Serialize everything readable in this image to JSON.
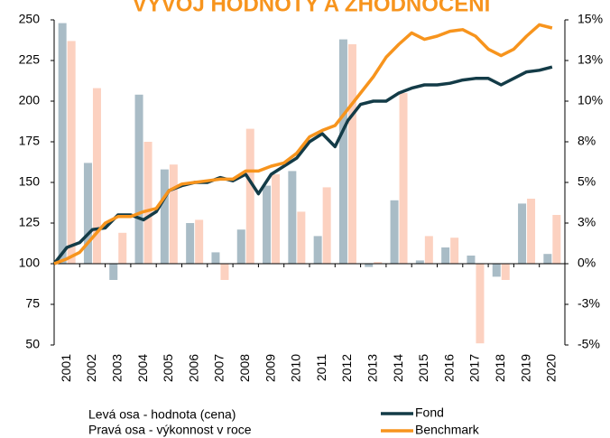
{
  "chart_data": {
    "type": "bar-line",
    "title": "VÝVOJ HODNOTY A ZHODNOCENÍ",
    "annotations": [
      "Levá osa - hodnota (cena)",
      "Pravá osa - výkonnost v roce"
    ],
    "categories": [
      "2001",
      "2002",
      "2003",
      "2004",
      "2005",
      "2006",
      "2007",
      "2008",
      "2009",
      "2010",
      "2011",
      "2012",
      "2013",
      "2014",
      "2015",
      "2016",
      "2017",
      "2018",
      "2019",
      "2020"
    ],
    "bar_series": [
      {
        "color": "#a9bcc6",
        "axis": "y2",
        "values": [
          14.8,
          6.2,
          -1.0,
          10.4,
          5.8,
          2.5,
          0.7,
          2.1,
          4.8,
          5.7,
          1.7,
          13.8,
          -0.2,
          3.9,
          0.2,
          1.0,
          0.5,
          -0.8,
          3.7,
          0.6
        ]
      },
      {
        "color": "#fcd1c0",
        "axis": "y2",
        "values": [
          13.7,
          10.8,
          1.9,
          7.5,
          6.1,
          2.7,
          -1.0,
          8.3,
          5.5,
          3.2,
          4.7,
          13.5,
          0.1,
          10.5,
          1.7,
          1.6,
          -4.9,
          -1.0,
          4.0,
          3.0
        ]
      }
    ],
    "x": [
      2001.0,
      2001.5,
      2002.0,
      2002.5,
      2003.0,
      2003.5,
      2004.0,
      2004.5,
      2005.0,
      2005.5,
      2006.0,
      2006.5,
      2007.0,
      2007.5,
      2008.0,
      2008.5,
      2009.0,
      2009.5,
      2010.0,
      2010.5,
      2011.0,
      2011.5,
      2012.0,
      2012.5,
      2013.0,
      2013.5,
      2014.0,
      2014.5,
      2015.0,
      2015.5,
      2016.0,
      2016.5,
      2017.0,
      2017.5,
      2018.0,
      2018.5,
      2019.0,
      2019.5,
      2020.0,
      2020.5
    ],
    "xlim": [
      2001,
      2021
    ],
    "series": [
      {
        "name": "Fond",
        "color": "#133b47",
        "values": [
          100,
          110,
          113,
          121,
          122,
          130,
          130,
          127,
          132,
          145,
          148,
          150,
          150,
          153,
          151,
          155,
          143,
          155,
          160,
          165,
          175,
          180,
          172,
          188,
          198,
          200,
          200,
          205,
          208,
          210,
          210,
          211,
          213,
          214,
          214,
          210,
          214,
          218,
          219,
          221
        ]
      },
      {
        "name": "Benchmark",
        "color": "#f7941d",
        "values": [
          100,
          103,
          107,
          116,
          125,
          129,
          129,
          132,
          134,
          145,
          149,
          150,
          151,
          152,
          152,
          157,
          157,
          160,
          162,
          168,
          178,
          182,
          185,
          195,
          205,
          215,
          227,
          235,
          242,
          238,
          240,
          243,
          244,
          240,
          232,
          228,
          232,
          240,
          247,
          245
        ]
      }
    ],
    "ylim": [
      50,
      250
    ],
    "yticks": [
      50,
      75,
      100,
      125,
      150,
      175,
      200,
      225,
      250
    ],
    "y2lim": [
      -5,
      15
    ],
    "y2ticks": [
      {
        "value": -5,
        "label": "-5%"
      },
      {
        "value": -2.5,
        "label": "-3%"
      },
      {
        "value": 0,
        "label": "0%"
      },
      {
        "value": 2.5,
        "label": "3%"
      },
      {
        "value": 5,
        "label": "5%"
      },
      {
        "value": 7.5,
        "label": "8%"
      },
      {
        "value": 10,
        "label": "10%"
      },
      {
        "value": 12.5,
        "label": "13%"
      },
      {
        "value": 15,
        "label": "15%"
      }
    ]
  }
}
